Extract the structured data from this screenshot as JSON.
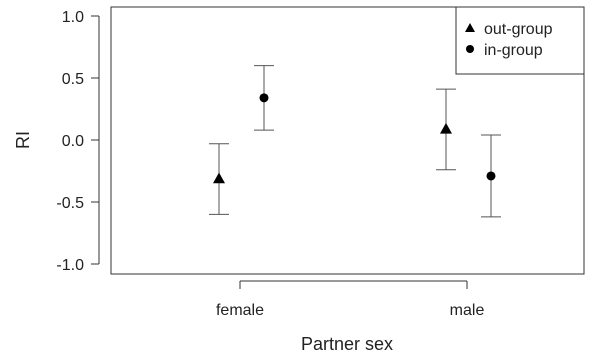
{
  "chart_data": {
    "type": "scatter",
    "xlabel": "Partner sex",
    "ylabel": "RI",
    "categories": [
      "female",
      "male"
    ],
    "ylim": [
      -1.0,
      1.0
    ],
    "yticks": [
      1.0,
      0.5,
      0.0,
      -0.5,
      -1.0
    ],
    "ytick_labels": [
      "1.0",
      "0.5",
      "0.0",
      "-0.5",
      "-1.0"
    ],
    "grid": false,
    "legend_position": "top-right",
    "series": [
      {
        "name": "out-group",
        "marker": "triangle",
        "color": "#000000",
        "points": [
          {
            "category": "female",
            "y": -0.31,
            "lower": -0.6,
            "upper": -0.03
          },
          {
            "category": "male",
            "y": 0.09,
            "lower": -0.24,
            "upper": 0.41
          }
        ]
      },
      {
        "name": "in-group",
        "marker": "circle",
        "color": "#000000",
        "points": [
          {
            "category": "female",
            "y": 0.34,
            "lower": 0.08,
            "upper": 0.6
          },
          {
            "category": "male",
            "y": -0.29,
            "lower": -0.62,
            "upper": 0.04
          }
        ]
      }
    ]
  }
}
